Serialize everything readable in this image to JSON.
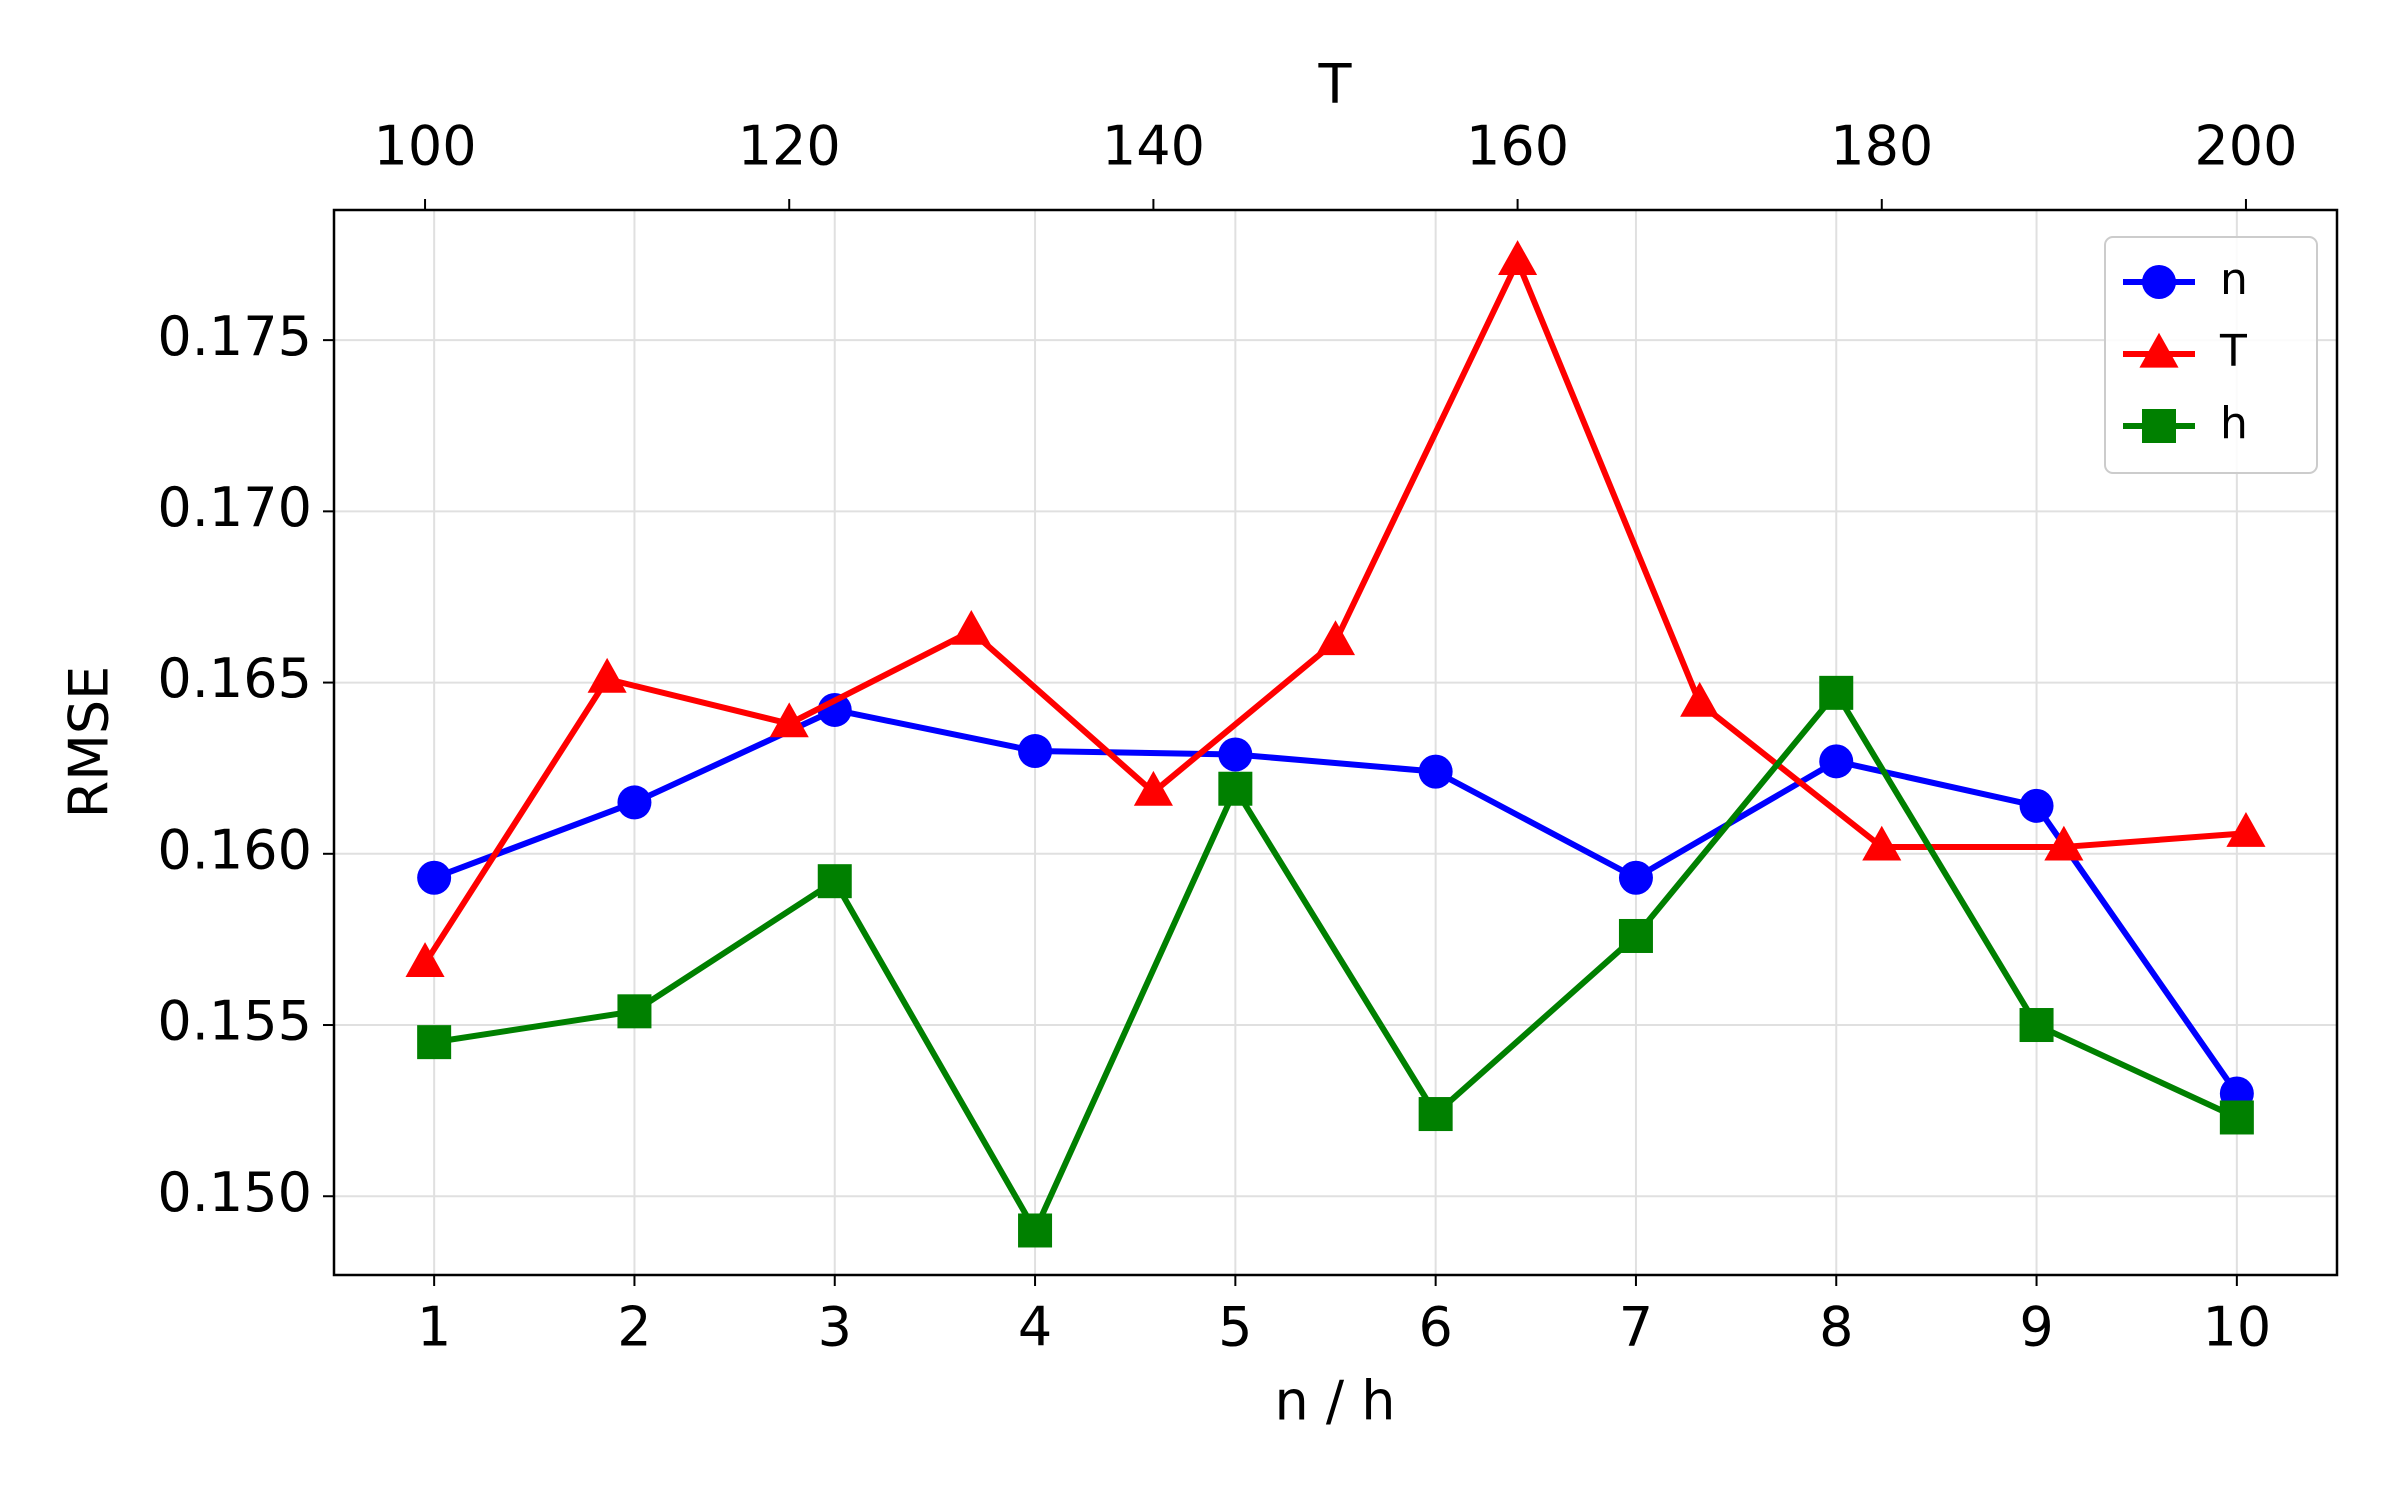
{
  "chart_data": {
    "type": "line",
    "xlabel": "n / h",
    "x2label": "T",
    "ylabel": "RMSE",
    "xlim": [
      0.5,
      10.5
    ],
    "xticks": [
      1,
      2,
      3,
      4,
      5,
      6,
      7,
      8,
      9,
      10
    ],
    "x2lim": [
      95,
      205
    ],
    "x2ticks": [
      100,
      120,
      140,
      160,
      180,
      200
    ],
    "ylim": [
      0.1477,
      0.1788
    ],
    "yticks": [
      {
        "value": 0.15,
        "label": "0.150"
      },
      0.155,
      {
        "value": 0.16,
        "label": "0.160"
      },
      0.165,
      {
        "value": 0.17,
        "label": "0.170"
      },
      0.175
    ],
    "grid": true,
    "legend": "upper right",
    "series": [
      {
        "name": "n",
        "color": "#0000ff",
        "marker": "circle",
        "axis": "x",
        "x": [
          1,
          2,
          3,
          4,
          5,
          6,
          7,
          8,
          9,
          10
        ],
        "values": [
          0.1593,
          0.1615,
          0.1642,
          0.163,
          0.1629,
          0.1624,
          0.1593,
          0.1627,
          0.1614,
          0.153
        ]
      },
      {
        "name": "T",
        "color": "#ff0000",
        "marker": "triangle",
        "axis": "x2",
        "x": [
          100,
          110,
          120,
          130,
          140,
          150,
          160,
          170,
          180,
          190,
          200
        ],
        "values": [
          0.1568,
          0.1651,
          0.1638,
          0.1665,
          0.1618,
          0.1662,
          0.1773,
          0.1644,
          0.1602,
          0.1602,
          0.1606
        ]
      },
      {
        "name": "h",
        "color": "#008000",
        "marker": "square",
        "axis": "x",
        "x": [
          1,
          2,
          3,
          4,
          5,
          6,
          7,
          8,
          9,
          10
        ],
        "values": [
          0.1545,
          0.1554,
          0.1592,
          0.149,
          0.1619,
          0.1524,
          0.1576,
          0.1647,
          0.155,
          0.1523
        ]
      }
    ]
  }
}
